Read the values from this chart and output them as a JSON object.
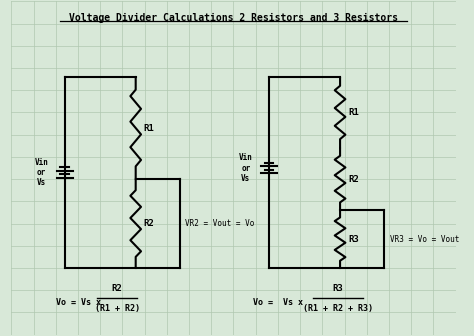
{
  "title": "Voltage Divider Calculations 2 Resistors and 3 Resistors",
  "bg_color": "#d8e8d8",
  "grid_color": "#b0c8b0",
  "line_color": "#000000",
  "text_color": "#000000",
  "label_vin_or_vs": "Vin\nor\nVs",
  "label_r1_left": "R1",
  "label_r2_left": "R2",
  "label_vr2": "VR2 = Vout = Vo",
  "label_vin_or_vs_right": "Vin\nor\nVs",
  "label_r1_right": "R1",
  "label_r2_right": "R2",
  "label_r3_right": "R3",
  "label_vr3": "VR3 = Vo = Vout"
}
